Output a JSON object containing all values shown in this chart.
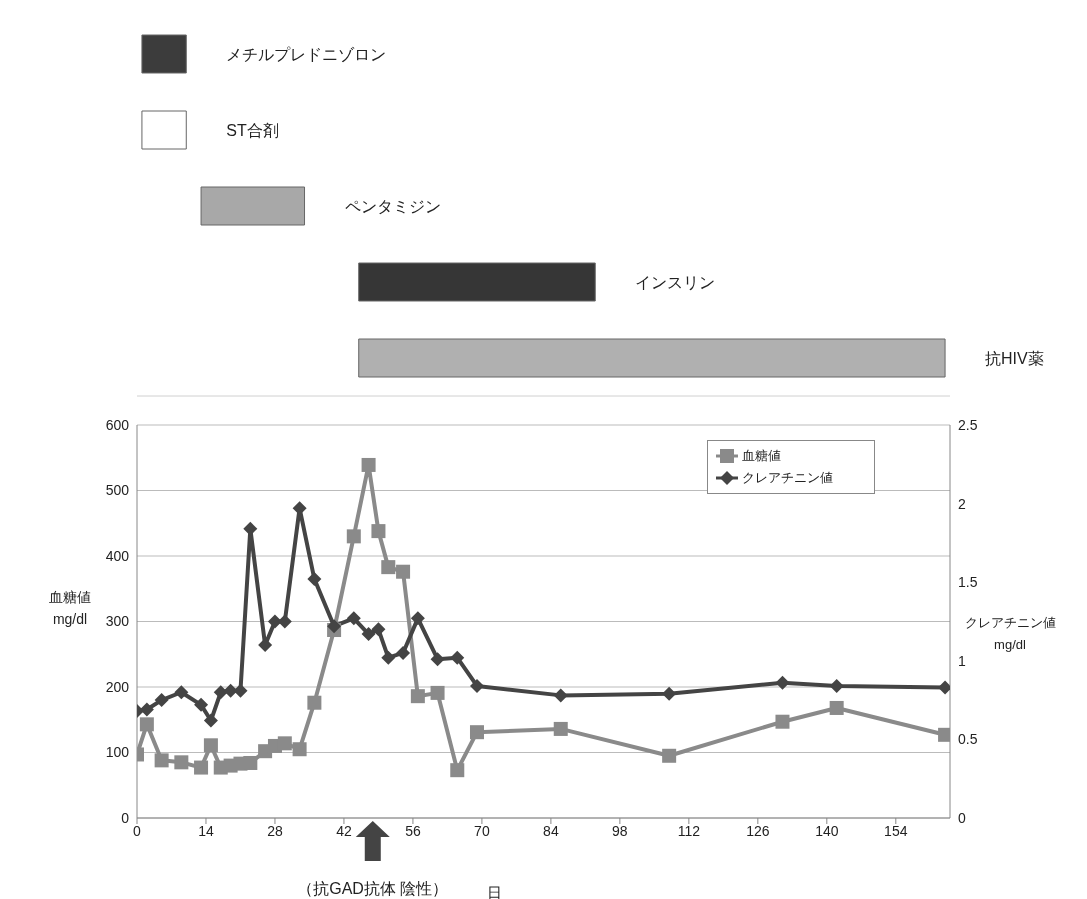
{
  "chart_data": [
    {
      "type": "bar",
      "orientation": "horizontal",
      "categories": [
        "メチルプレドニゾロン",
        "ST合剤",
        "ペンタミジン",
        "インスリン",
        "抗HIV薬"
      ],
      "base": [
        1,
        1,
        13,
        45,
        45
      ],
      "values": [
        9,
        9,
        21,
        48,
        119
      ],
      "colors": [
        "#3c3c3c",
        "#ffffff",
        "#a8a8a8",
        "#363636",
        "#b0b0b0"
      ],
      "xlim": [
        0,
        165
      ],
      "tick_labels": false
    },
    {
      "type": "line",
      "xlabel": "日",
      "ylabel": "血糖値\nmg/dl",
      "y2label": "クレアチニン値\nmg/dl",
      "annotations": [
        "（抗GAD抗体 陰性）"
      ],
      "xlim": [
        0,
        165
      ],
      "xticks": [
        0,
        14,
        28,
        42,
        56,
        70,
        84,
        98,
        112,
        126,
        140,
        154
      ],
      "ylim": [
        0,
        600
      ],
      "yticks": [
        0,
        100,
        200,
        300,
        400,
        500,
        600
      ],
      "y2lim": [
        0,
        2.5
      ],
      "y2ticks": [
        0,
        0.5,
        1,
        1.5,
        2,
        2.5
      ],
      "grid": "y",
      "legend": "top right",
      "series": [
        {
          "name": "血糖値",
          "color": "#8a8a8a",
          "marker": "square",
          "x": [
            0,
            2,
            5,
            9,
            13,
            15,
            17,
            19,
            21,
            23,
            26,
            28,
            30,
            33,
            36,
            40,
            44,
            47,
            49,
            51,
            54,
            57,
            61,
            65,
            69,
            86,
            108,
            131,
            142,
            164
          ],
          "values": [
            97,
            143,
            88,
            85,
            77,
            111,
            77,
            80,
            83,
            84,
            102,
            110,
            114,
            105,
            176,
            287,
            430,
            539,
            438,
            383,
            376,
            186,
            191,
            73,
            131,
            136,
            95,
            147,
            168,
            127
          ]
        },
        {
          "name": "クレアチニン値",
          "color": "#444444",
          "marker": "diamond",
          "axis": "y2",
          "x": [
            0,
            2,
            5,
            9,
            13,
            15,
            17,
            19,
            21,
            23,
            26,
            28,
            30,
            33,
            36,
            40,
            44,
            47,
            49,
            51,
            54,
            57,
            61,
            65,
            69,
            86,
            108,
            131,
            142,
            164
          ],
          "values": [
            0.68,
            0.69,
            0.75,
            0.8,
            0.72,
            0.62,
            0.8,
            0.81,
            0.81,
            1.84,
            1.1,
            1.25,
            1.25,
            1.97,
            1.52,
            1.22,
            1.27,
            1.17,
            1.2,
            1.02,
            1.05,
            1.27,
            1.01,
            1.02,
            0.84,
            0.78,
            0.79,
            0.86,
            0.84,
            0.83
          ]
        }
      ]
    }
  ]
}
